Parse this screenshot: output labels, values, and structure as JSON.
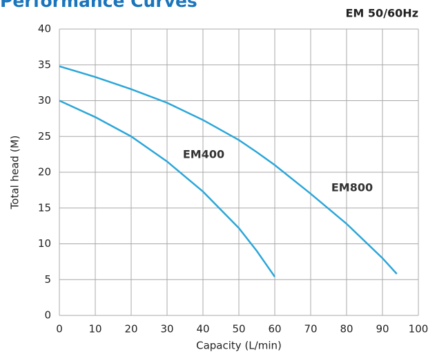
{
  "chart_data": {
    "type": "line",
    "title": "Performance Curves",
    "subtitle": "EM 50/60Hz",
    "x_label": "Capacity (L/min)",
    "y_label": "Total head (M)",
    "xlim": [
      0,
      100
    ],
    "xticks": [
      0,
      10,
      20,
      30,
      40,
      50,
      60,
      70,
      80,
      90,
      100
    ],
    "ylim": [
      0,
      40
    ],
    "yticks": [
      0,
      5,
      10,
      15,
      20,
      25,
      30,
      35,
      40
    ],
    "grid": true,
    "series": [
      {
        "name": "EM400",
        "color": "#2ba6d9",
        "x": [
          0,
          10,
          20,
          30,
          40,
          50,
          55,
          60
        ],
        "values": [
          30,
          27.7,
          25,
          21.5,
          17.3,
          12.2,
          9,
          5.4
        ]
      },
      {
        "name": "EM800",
        "color": "#2ba6d9",
        "x": [
          0,
          10,
          20,
          30,
          40,
          50,
          55,
          60,
          70,
          80,
          90,
          94
        ],
        "values": [
          34.8,
          33.3,
          31.6,
          29.7,
          27.3,
          24.5,
          22.8,
          21,
          17,
          12.8,
          8,
          5.8
        ]
      }
    ]
  }
}
